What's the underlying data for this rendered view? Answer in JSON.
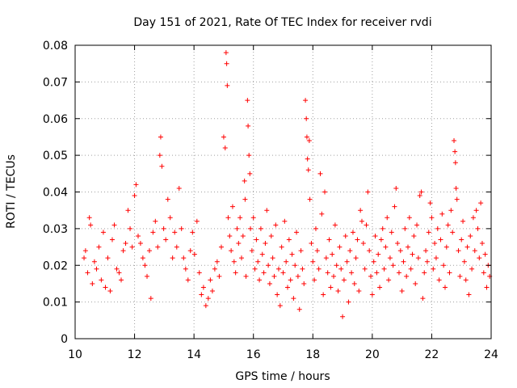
{
  "chart_data": {
    "type": "scatter",
    "title": "Day 151 of 2021, Rate Of TEC Index for receiver rvdi",
    "xlabel": "GPS time / hours",
    "ylabel": "ROTI / TECUs",
    "xlim": [
      10,
      24
    ],
    "ylim": [
      0,
      0.08
    ],
    "x_ticks": [
      10,
      12,
      14,
      16,
      18,
      20,
      22,
      24
    ],
    "x_tick_labels": [
      "10",
      "12",
      "14",
      "16",
      "18",
      "20",
      "22",
      "24"
    ],
    "y_ticks": [
      0,
      0.01,
      0.02,
      0.03,
      0.04,
      0.05,
      0.06,
      0.07,
      0.08
    ],
    "y_tick_labels": [
      "0",
      "0.01",
      "0.02",
      "0.03",
      "0.04",
      "0.05",
      "0.06",
      "0.07",
      "0.08"
    ],
    "grid": true,
    "marker": "+",
    "color": "#ff0000",
    "series": [
      {
        "name": "ROTI",
        "points": [
          [
            10.3,
            0.022
          ],
          [
            10.35,
            0.024
          ],
          [
            10.42,
            0.018
          ],
          [
            10.48,
            0.033
          ],
          [
            10.52,
            0.031
          ],
          [
            10.58,
            0.015
          ],
          [
            10.65,
            0.021
          ],
          [
            10.72,
            0.019
          ],
          [
            10.8,
            0.025
          ],
          [
            10.88,
            0.016
          ],
          [
            10.95,
            0.029
          ],
          [
            11.02,
            0.014
          ],
          [
            11.1,
            0.022
          ],
          [
            11.18,
            0.013
          ],
          [
            11.25,
            0.027
          ],
          [
            11.32,
            0.031
          ],
          [
            11.4,
            0.019
          ],
          [
            11.48,
            0.018
          ],
          [
            11.55,
            0.016
          ],
          [
            11.62,
            0.024
          ],
          [
            11.7,
            0.026
          ],
          [
            11.78,
            0.035
          ],
          [
            11.85,
            0.03
          ],
          [
            11.92,
            0.025
          ],
          [
            12.0,
            0.039
          ],
          [
            12.05,
            0.042
          ],
          [
            12.12,
            0.028
          ],
          [
            12.2,
            0.026
          ],
          [
            12.28,
            0.022
          ],
          [
            12.35,
            0.02
          ],
          [
            12.42,
            0.017
          ],
          [
            12.5,
            0.024
          ],
          [
            12.55,
            0.011
          ],
          [
            12.62,
            0.029
          ],
          [
            12.7,
            0.032
          ],
          [
            12.78,
            0.025
          ],
          [
            12.85,
            0.05
          ],
          [
            12.88,
            0.055
          ],
          [
            12.92,
            0.047
          ],
          [
            12.98,
            0.03
          ],
          [
            13.05,
            0.027
          ],
          [
            13.12,
            0.038
          ],
          [
            13.2,
            0.033
          ],
          [
            13.28,
            0.022
          ],
          [
            13.35,
            0.029
          ],
          [
            13.42,
            0.025
          ],
          [
            13.5,
            0.041
          ],
          [
            13.58,
            0.03
          ],
          [
            13.65,
            0.022
          ],
          [
            13.72,
            0.019
          ],
          [
            13.8,
            0.016
          ],
          [
            13.88,
            0.024
          ],
          [
            13.95,
            0.029
          ],
          [
            14.02,
            0.023
          ],
          [
            14.1,
            0.032
          ],
          [
            14.18,
            0.018
          ],
          [
            14.25,
            0.012
          ],
          [
            14.32,
            0.014
          ],
          [
            14.4,
            0.009
          ],
          [
            14.48,
            0.011
          ],
          [
            14.55,
            0.016
          ],
          [
            14.62,
            0.013
          ],
          [
            14.7,
            0.019
          ],
          [
            14.78,
            0.021
          ],
          [
            14.85,
            0.017
          ],
          [
            14.92,
            0.025
          ],
          [
            15.0,
            0.055
          ],
          [
            15.05,
            0.052
          ],
          [
            15.08,
            0.078
          ],
          [
            15.1,
            0.075
          ],
          [
            15.12,
            0.069
          ],
          [
            15.15,
            0.033
          ],
          [
            15.2,
            0.028
          ],
          [
            15.25,
            0.024
          ],
          [
            15.3,
            0.036
          ],
          [
            15.35,
            0.021
          ],
          [
            15.4,
            0.018
          ],
          [
            15.45,
            0.03
          ],
          [
            15.5,
            0.026
          ],
          [
            15.55,
            0.033
          ],
          [
            15.6,
            0.022
          ],
          [
            15.65,
            0.028
          ],
          [
            15.7,
            0.043
          ],
          [
            15.72,
            0.038
          ],
          [
            15.75,
            0.017
          ],
          [
            15.8,
            0.065
          ],
          [
            15.82,
            0.058
          ],
          [
            15.85,
            0.05
          ],
          [
            15.88,
            0.045
          ],
          [
            15.9,
            0.03
          ],
          [
            15.95,
            0.024
          ],
          [
            16.0,
            0.033
          ],
          [
            16.05,
            0.019
          ],
          [
            16.1,
            0.027
          ],
          [
            16.15,
            0.021
          ],
          [
            16.2,
            0.016
          ],
          [
            16.25,
            0.03
          ],
          [
            16.3,
            0.023
          ],
          [
            16.35,
            0.018
          ],
          [
            16.4,
            0.026
          ],
          [
            16.45,
            0.035
          ],
          [
            16.5,
            0.02
          ],
          [
            16.55,
            0.015
          ],
          [
            16.6,
            0.028
          ],
          [
            16.65,
            0.022
          ],
          [
            16.7,
            0.017
          ],
          [
            16.75,
            0.031
          ],
          [
            16.8,
            0.012
          ],
          [
            16.85,
            0.019
          ],
          [
            16.9,
            0.009
          ],
          [
            16.95,
            0.025
          ],
          [
            17.0,
            0.018
          ],
          [
            17.05,
            0.032
          ],
          [
            17.1,
            0.021
          ],
          [
            17.15,
            0.014
          ],
          [
            17.2,
            0.027
          ],
          [
            17.25,
            0.016
          ],
          [
            17.3,
            0.023
          ],
          [
            17.35,
            0.011
          ],
          [
            17.4,
            0.02
          ],
          [
            17.45,
            0.029
          ],
          [
            17.5,
            0.017
          ],
          [
            17.55,
            0.008
          ],
          [
            17.6,
            0.024
          ],
          [
            17.65,
            0.019
          ],
          [
            17.7,
            0.015
          ],
          [
            17.75,
            0.065
          ],
          [
            17.78,
            0.06
          ],
          [
            17.8,
            0.055
          ],
          [
            17.82,
            0.049
          ],
          [
            17.85,
            0.046
          ],
          [
            17.88,
            0.054
          ],
          [
            17.9,
            0.038
          ],
          [
            17.95,
            0.026
          ],
          [
            18.0,
            0.021
          ],
          [
            18.05,
            0.016
          ],
          [
            18.1,
            0.03
          ],
          [
            18.15,
            0.024
          ],
          [
            18.2,
            0.019
          ],
          [
            18.25,
            0.045
          ],
          [
            18.3,
            0.034
          ],
          [
            18.35,
            0.012
          ],
          [
            18.4,
            0.04
          ],
          [
            18.45,
            0.022
          ],
          [
            18.5,
            0.018
          ],
          [
            18.55,
            0.027
          ],
          [
            18.6,
            0.014
          ],
          [
            18.65,
            0.023
          ],
          [
            18.7,
            0.017
          ],
          [
            18.75,
            0.031
          ],
          [
            18.8,
            0.02
          ],
          [
            18.85,
            0.013
          ],
          [
            18.9,
            0.025
          ],
          [
            18.95,
            0.019
          ],
          [
            19.0,
            0.006
          ],
          [
            19.05,
            0.016
          ],
          [
            19.1,
            0.028
          ],
          [
            19.15,
            0.021
          ],
          [
            19.2,
            0.01
          ],
          [
            19.25,
            0.024
          ],
          [
            19.3,
            0.018
          ],
          [
            19.35,
            0.029
          ],
          [
            19.4,
            0.015
          ],
          [
            19.45,
            0.022
          ],
          [
            19.5,
            0.027
          ],
          [
            19.55,
            0.013
          ],
          [
            19.6,
            0.035
          ],
          [
            19.65,
            0.032
          ],
          [
            19.7,
            0.026
          ],
          [
            19.75,
            0.019
          ],
          [
            19.8,
            0.031
          ],
          [
            19.85,
            0.04
          ],
          [
            19.9,
            0.024
          ],
          [
            19.95,
            0.017
          ],
          [
            20.0,
            0.012
          ],
          [
            20.05,
            0.021
          ],
          [
            20.1,
            0.028
          ],
          [
            20.15,
            0.018
          ],
          [
            20.2,
            0.023
          ],
          [
            20.25,
            0.014
          ],
          [
            20.3,
            0.027
          ],
          [
            20.35,
            0.03
          ],
          [
            20.4,
            0.019
          ],
          [
            20.45,
            0.025
          ],
          [
            20.5,
            0.033
          ],
          [
            20.55,
            0.016
          ],
          [
            20.6,
            0.022
          ],
          [
            20.65,
            0.029
          ],
          [
            20.7,
            0.02
          ],
          [
            20.75,
            0.036
          ],
          [
            20.8,
            0.041
          ],
          [
            20.85,
            0.026
          ],
          [
            20.9,
            0.018
          ],
          [
            20.95,
            0.024
          ],
          [
            21.0,
            0.013
          ],
          [
            21.05,
            0.021
          ],
          [
            21.1,
            0.03
          ],
          [
            21.15,
            0.017
          ],
          [
            21.2,
            0.025
          ],
          [
            21.25,
            0.033
          ],
          [
            21.3,
            0.019
          ],
          [
            21.35,
            0.023
          ],
          [
            21.4,
            0.028
          ],
          [
            21.45,
            0.015
          ],
          [
            21.5,
            0.031
          ],
          [
            21.55,
            0.022
          ],
          [
            21.6,
            0.039
          ],
          [
            21.65,
            0.04
          ],
          [
            21.7,
            0.011
          ],
          [
            21.75,
            0.018
          ],
          [
            21.8,
            0.024
          ],
          [
            21.85,
            0.021
          ],
          [
            21.9,
            0.029
          ],
          [
            21.95,
            0.037
          ],
          [
            22.0,
            0.033
          ],
          [
            22.05,
            0.019
          ],
          [
            22.1,
            0.026
          ],
          [
            22.15,
            0.022
          ],
          [
            22.2,
            0.03
          ],
          [
            22.25,
            0.016
          ],
          [
            22.3,
            0.027
          ],
          [
            22.35,
            0.034
          ],
          [
            22.4,
            0.02
          ],
          [
            22.45,
            0.014
          ],
          [
            22.5,
            0.025
          ],
          [
            22.55,
            0.031
          ],
          [
            22.6,
            0.018
          ],
          [
            22.65,
            0.035
          ],
          [
            22.7,
            0.029
          ],
          [
            22.75,
            0.054
          ],
          [
            22.78,
            0.051
          ],
          [
            22.8,
            0.048
          ],
          [
            22.82,
            0.041
          ],
          [
            22.85,
            0.038
          ],
          [
            22.9,
            0.024
          ],
          [
            22.95,
            0.017
          ],
          [
            23.0,
            0.027
          ],
          [
            23.05,
            0.032
          ],
          [
            23.1,
            0.021
          ],
          [
            23.15,
            0.016
          ],
          [
            23.2,
            0.025
          ],
          [
            23.25,
            0.012
          ],
          [
            23.3,
            0.028
          ],
          [
            23.35,
            0.019
          ],
          [
            23.4,
            0.033
          ],
          [
            23.45,
            0.024
          ],
          [
            23.5,
            0.035
          ],
          [
            23.55,
            0.03
          ],
          [
            23.6,
            0.022
          ],
          [
            23.65,
            0.037
          ],
          [
            23.7,
            0.026
          ],
          [
            23.75,
            0.018
          ],
          [
            23.8,
            0.023
          ],
          [
            23.85,
            0.014
          ],
          [
            23.9,
            0.02
          ],
          [
            23.95,
            0.017
          ]
        ]
      }
    ]
  }
}
